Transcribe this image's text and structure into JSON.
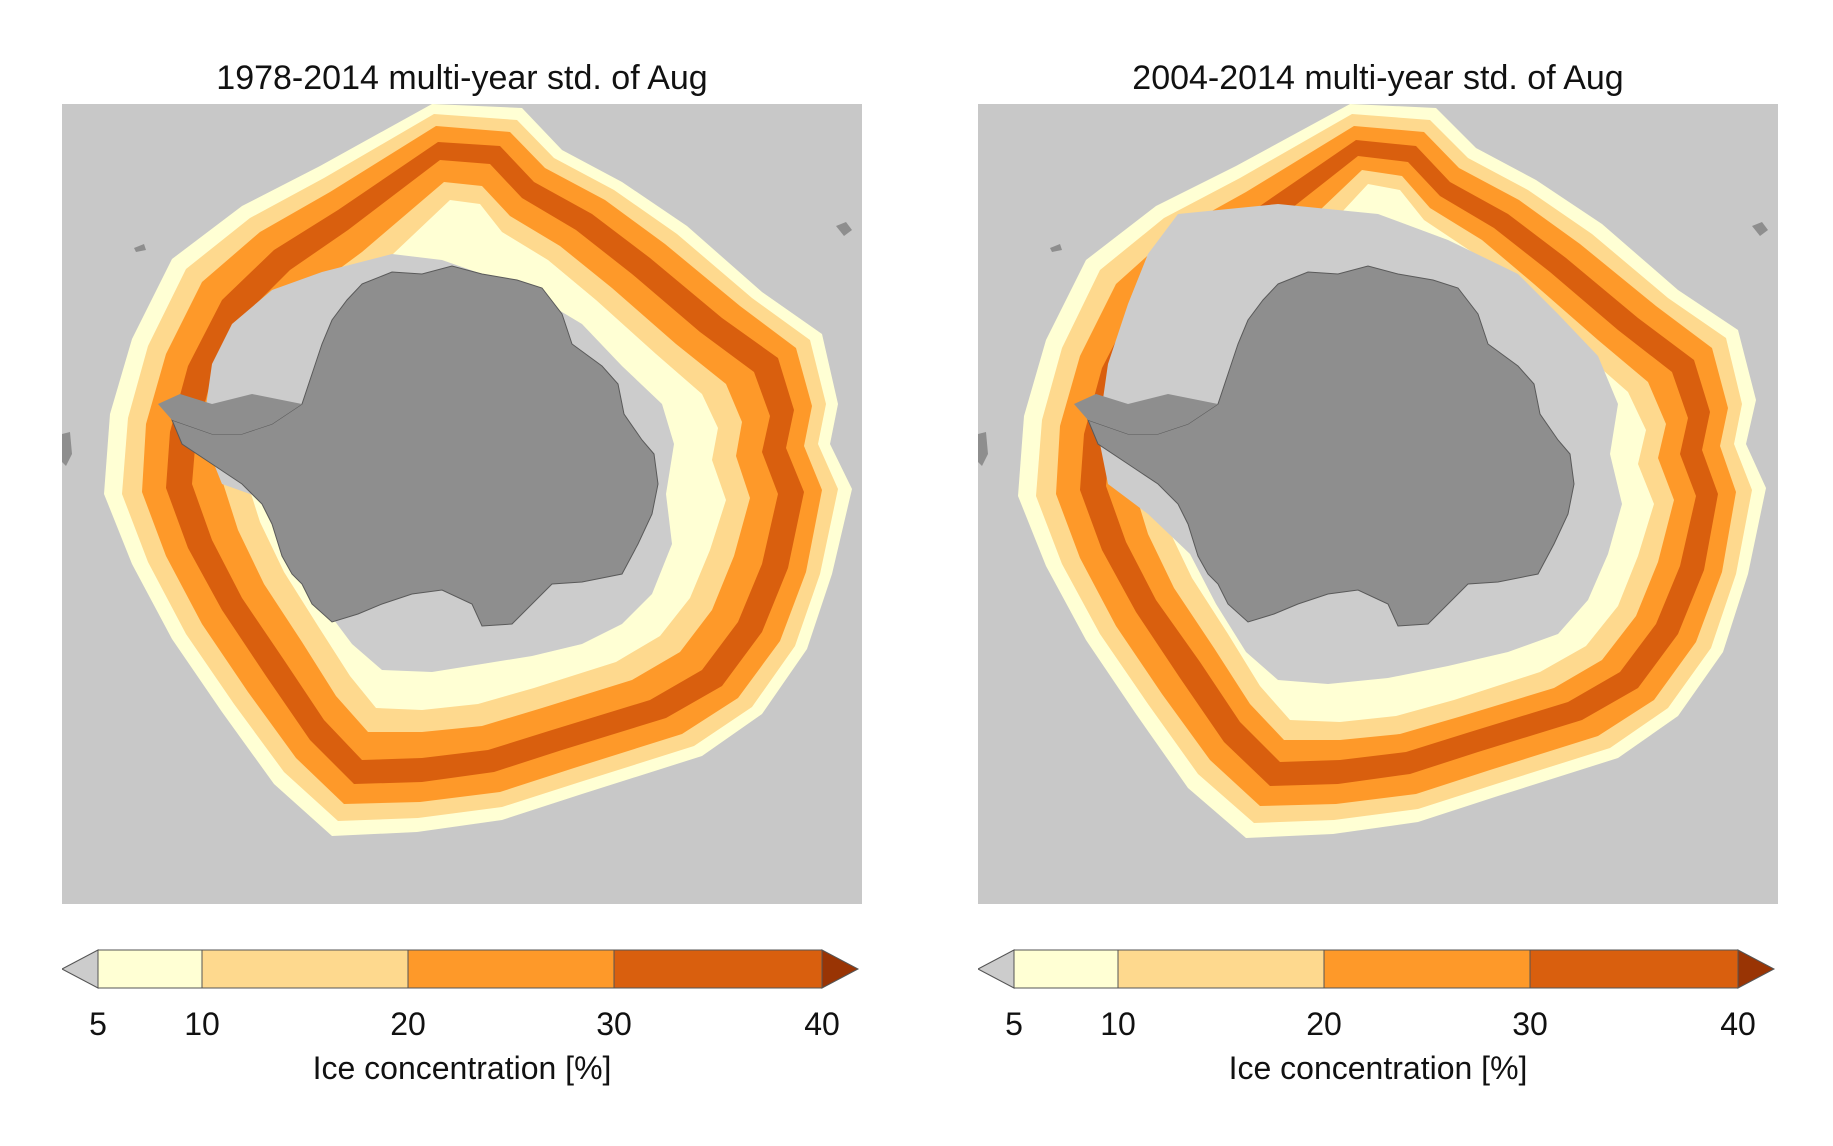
{
  "panels": [
    {
      "title": "1978-2014 multi-year std. of Aug",
      "colorbar": {
        "ticks": [
          "5",
          "10",
          "20",
          "30",
          "40"
        ],
        "label": "Ice concentration [%]"
      }
    },
    {
      "title": "2004-2014 multi-year std. of Aug",
      "colorbar": {
        "ticks": [
          "5",
          "10",
          "20",
          "30",
          "40"
        ],
        "label": "Ice concentration [%]"
      }
    }
  ],
  "colors": {
    "ocean": "#c8c8c8",
    "land": "#8e8e8e",
    "under_min": "#cccccc",
    "levels": [
      "#ffffd4",
      "#fed98e",
      "#fe9929",
      "#d95f0e"
    ],
    "over_max": "#993404",
    "outline": "#5a5a5a"
  },
  "colorbar_levels": [
    5,
    10,
    20,
    30,
    40
  ]
}
